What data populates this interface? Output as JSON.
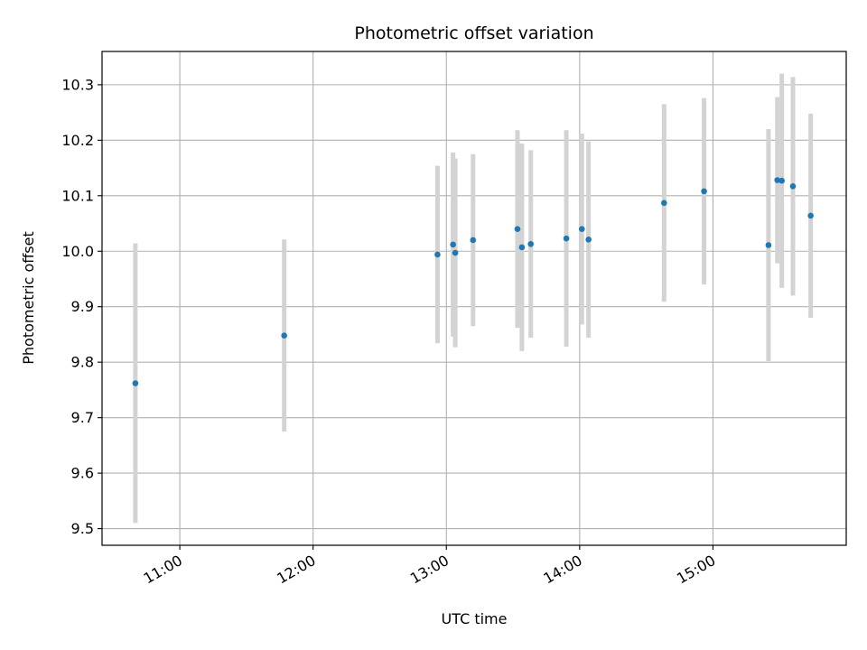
{
  "chart_data": {
    "type": "scatter",
    "title": "Photometric offset variation",
    "xlabel": "UTC time",
    "ylabel": "Photometric offset",
    "xlim": [
      "10:25",
      "16:00"
    ],
    "ylim": [
      9.47,
      10.36
    ],
    "grid": true,
    "x_ticks": [
      "11:00",
      "12:00",
      "13:00",
      "14:00",
      "15:00"
    ],
    "y_ticks": [
      "9.5",
      "9.6",
      "9.7",
      "9.8",
      "9.9",
      "10.0",
      "10.1",
      "10.2",
      "10.3"
    ],
    "point_color": "#1f77b4",
    "errorbar_color": "#d3d3d3",
    "points": [
      {
        "x": "10:40",
        "y": 9.762,
        "err": 0.252
      },
      {
        "x": "11:47",
        "y": 9.848,
        "err": 0.173
      },
      {
        "x": "12:56",
        "y": 9.994,
        "err": 0.16
      },
      {
        "x": "13:03",
        "y": 10.012,
        "err": 0.166
      },
      {
        "x": "13:04",
        "y": 9.997,
        "err": 0.17
      },
      {
        "x": "13:12",
        "y": 10.02,
        "err": 0.155
      },
      {
        "x": "13:32",
        "y": 10.04,
        "err": 0.178
      },
      {
        "x": "13:34",
        "y": 10.007,
        "err": 0.187
      },
      {
        "x": "13:38",
        "y": 10.013,
        "err": 0.169
      },
      {
        "x": "13:54",
        "y": 10.023,
        "err": 0.195
      },
      {
        "x": "14:01",
        "y": 10.04,
        "err": 0.172
      },
      {
        "x": "14:04",
        "y": 10.021,
        "err": 0.177
      },
      {
        "x": "14:38",
        "y": 10.087,
        "err": 0.178
      },
      {
        "x": "14:56",
        "y": 10.108,
        "err": 0.168
      },
      {
        "x": "15:25",
        "y": 10.011,
        "err": 0.209
      },
      {
        "x": "15:29",
        "y": 10.128,
        "err": 0.15
      },
      {
        "x": "15:31",
        "y": 10.127,
        "err": 0.193
      },
      {
        "x": "15:36",
        "y": 10.117,
        "err": 0.197
      },
      {
        "x": "15:44",
        "y": 10.064,
        "err": 0.184
      }
    ]
  }
}
